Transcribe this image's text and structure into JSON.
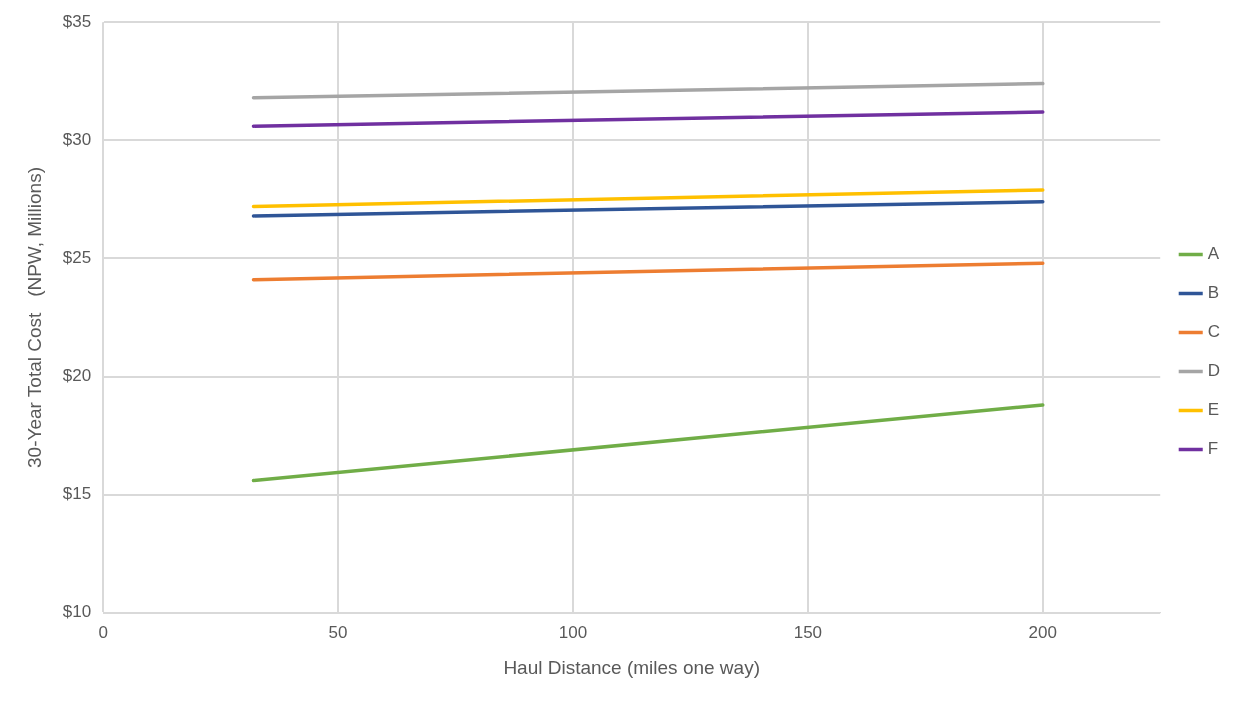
{
  "chart_data": {
    "type": "line",
    "xlabel": "Haul Distance (miles one way)",
    "ylabel": "30-Year Total Cost   (NPW, Millions)",
    "x": [
      32,
      200
    ],
    "series": [
      {
        "name": "A",
        "color": "#70ad47",
        "values": [
          15.6,
          18.8
        ]
      },
      {
        "name": "B",
        "color": "#2f5597",
        "values": [
          26.8,
          27.4
        ]
      },
      {
        "name": "C",
        "color": "#ed7d31",
        "values": [
          24.1,
          24.8
        ]
      },
      {
        "name": "D",
        "color": "#a5a5a5",
        "values": [
          31.8,
          32.4
        ]
      },
      {
        "name": "E",
        "color": "#ffc000",
        "values": [
          27.2,
          27.9
        ]
      },
      {
        "name": "F",
        "color": "#7030a0",
        "values": [
          30.6,
          31.2
        ]
      }
    ],
    "xlim": [
      0,
      225
    ],
    "xticks": [
      0,
      50,
      100,
      150,
      200
    ],
    "ylim": [
      10,
      35
    ],
    "yticks": [
      {
        "value": 10,
        "label": "$10"
      },
      {
        "value": 15,
        "label": "$15"
      },
      {
        "value": 20,
        "label": "$20"
      },
      {
        "value": 25,
        "label": "$25"
      },
      {
        "value": 30,
        "label": "$30"
      },
      {
        "value": 35,
        "label": "$35"
      }
    ],
    "grid": true,
    "legend": "right",
    "marker": "none",
    "line_style": "solid"
  }
}
